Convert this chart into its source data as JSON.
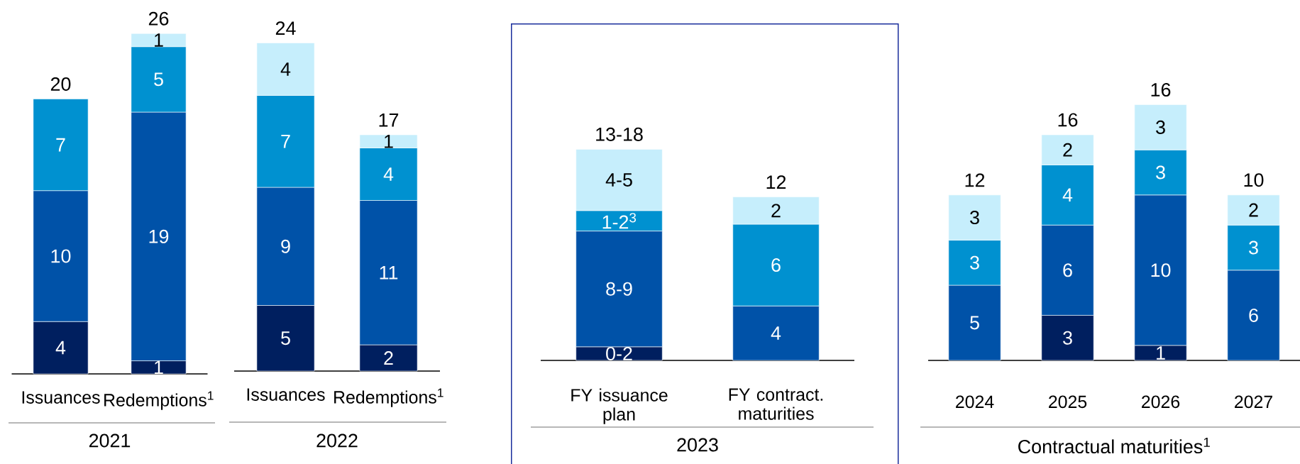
{
  "chart_data": [
    {
      "type": "bar",
      "stacked": true,
      "data_labels": true,
      "xlabel": "2021",
      "categories": [
        "Issuances",
        "Redemptions$^{1}$"
      ],
      "totals": [
        "20",
        "26"
      ],
      "series": [
        {
          "color": "#001f5f",
          "values": [
            4,
            1
          ]
        },
        {
          "color": "#0052a8",
          "values": [
            10,
            19
          ]
        },
        {
          "color": "#0091d0",
          "values": [
            7,
            5
          ]
        },
        {
          "color": "#c6eefc",
          "values": [
            null,
            1
          ]
        }
      ]
    },
    {
      "type": "bar",
      "stacked": true,
      "data_labels": true,
      "xlabel": "2022",
      "categories": [
        "Issuances",
        "Redemptions$^{1}$"
      ],
      "totals": [
        "24",
        "17"
      ],
      "series": [
        {
          "color": "#001f5f",
          "values": [
            5,
            2
          ]
        },
        {
          "color": "#0052a8",
          "values": [
            9,
            11
          ]
        },
        {
          "color": "#0091d0",
          "values": [
            7,
            4
          ]
        },
        {
          "color": "#c6eefc",
          "values": [
            4,
            1
          ]
        }
      ]
    },
    {
      "type": "bar",
      "stacked": true,
      "xlabel": "2023",
      "categories": [
        "FY issuance plan",
        "FY contract. maturities"
      ],
      "totals": [
        "13-18",
        "12"
      ],
      "series": [
        {
          "color": "#001f5f",
          "values": [
            1,
            null
          ],
          "value_labels": [
            "0-2",
            null
          ]
        },
        {
          "color": "#0052a8",
          "values": [
            8.5,
            4
          ],
          "value_labels": [
            "8-9",
            "4"
          ]
        },
        {
          "color": "#0091d0",
          "values": [
            1.5,
            6
          ],
          "value_labels": [
            "1-2$^{3}$",
            "6"
          ]
        },
        {
          "color": "#c6eefc",
          "values": [
            4.5,
            2
          ],
          "value_labels": [
            "4-5",
            "2"
          ]
        }
      ]
    },
    {
      "type": "bar",
      "stacked": true,
      "data_labels": true,
      "xlabel": "Contractual maturities$^{1}$",
      "categories": [
        "2024",
        "2025",
        "2026",
        "2027"
      ],
      "totals": [
        "12",
        "16",
        "16",
        "10"
      ],
      "series": [
        {
          "color": "#001f5f",
          "values": [
            null,
            3,
            1,
            null
          ]
        },
        {
          "color": "#0052a8",
          "values": [
            5,
            6,
            10,
            6
          ]
        },
        {
          "color": "#0091d0",
          "values": [
            3,
            4,
            3,
            3
          ]
        },
        {
          "color": "#c6eefc",
          "values": [
            3,
            2,
            3,
            2
          ]
        }
      ]
    }
  ]
}
